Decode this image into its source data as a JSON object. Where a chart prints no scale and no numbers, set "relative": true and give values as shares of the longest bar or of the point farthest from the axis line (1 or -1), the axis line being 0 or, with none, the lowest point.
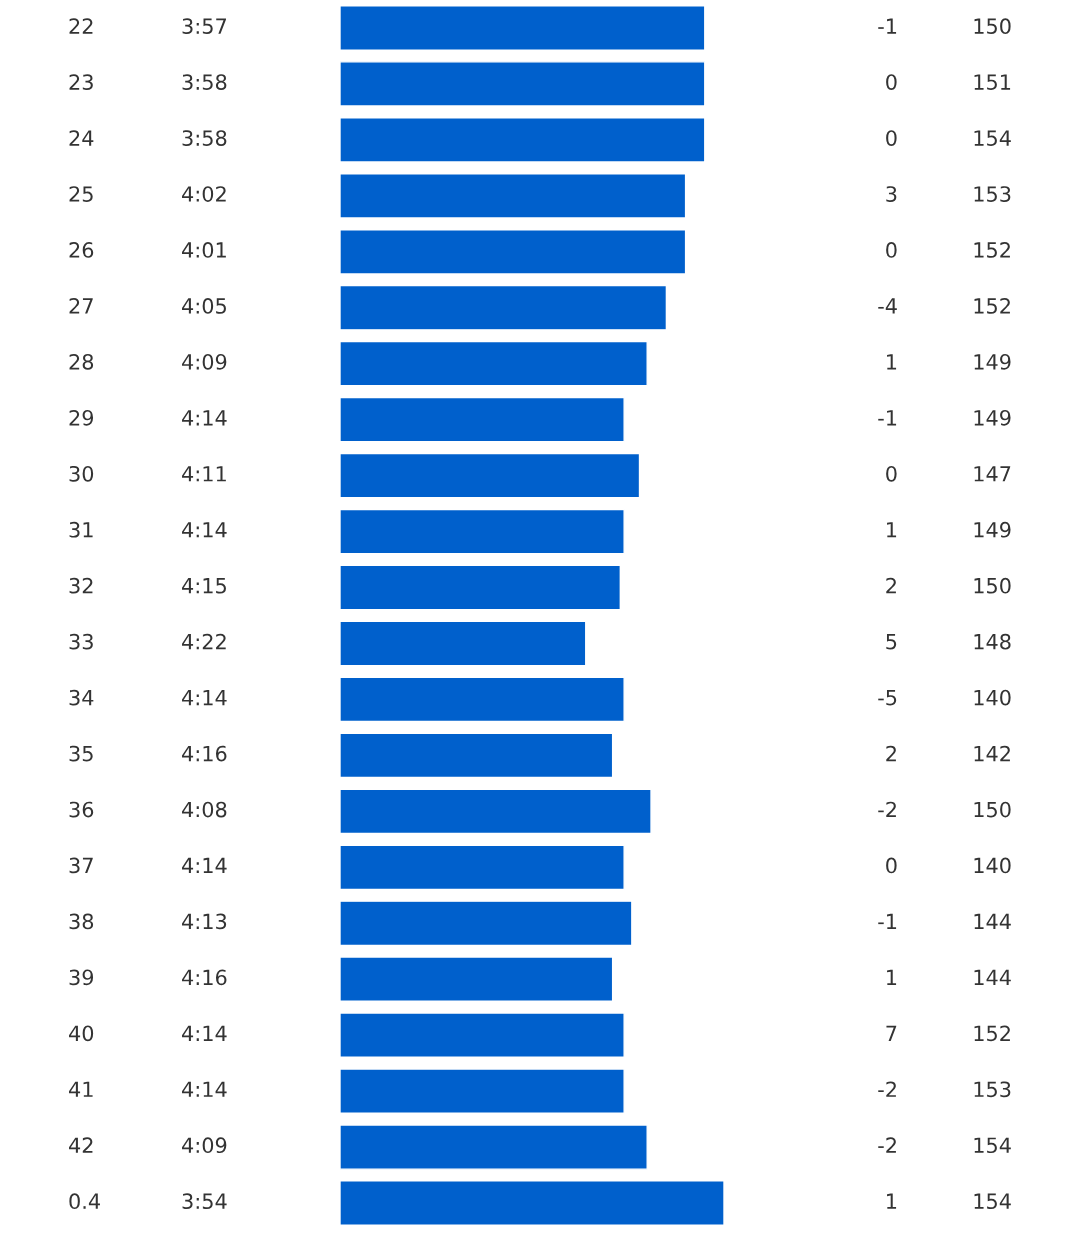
{
  "chart_data": {
    "type": "bar",
    "orientation": "horizontal",
    "relative": true,
    "color": "#0060cc",
    "categories": [
      "22",
      "23",
      "24",
      "25",
      "26",
      "27",
      "28",
      "29",
      "30",
      "31",
      "32",
      "33",
      "34",
      "35",
      "36",
      "37",
      "38",
      "39",
      "40",
      "41",
      "42",
      "0.4"
    ],
    "values": [
      0.95,
      0.95,
      0.95,
      0.9,
      0.9,
      0.85,
      0.8,
      0.74,
      0.78,
      0.74,
      0.73,
      0.64,
      0.74,
      0.71,
      0.81,
      0.74,
      0.76,
      0.71,
      0.74,
      0.74,
      0.8,
      1
    ],
    "annotations": [
      "3:57",
      "3:58",
      "3:58",
      "4:02",
      "4:01",
      "4:05",
      "4:09",
      "4:14",
      "4:11",
      "4:14",
      "4:15",
      "4:22",
      "4:14",
      "4:16",
      "4:08",
      "4:14",
      "4:13",
      "4:16",
      "4:14",
      "4:14",
      "4:09",
      "3:54",
      "-1",
      "0",
      "0",
      "3",
      "0",
      "-4",
      "1",
      "-1",
      "0",
      "1",
      "2",
      "5",
      "-5",
      "2",
      "-2",
      "0",
      "-1",
      "1",
      "7",
      "-2",
      "-2",
      "1",
      "150",
      "151",
      "154",
      "153",
      "152",
      "152",
      "149",
      "149",
      "147",
      "149",
      "150",
      "148",
      "140",
      "142",
      "150",
      "140",
      "144",
      "144",
      "152",
      "153",
      "154",
      "154"
    ]
  }
}
